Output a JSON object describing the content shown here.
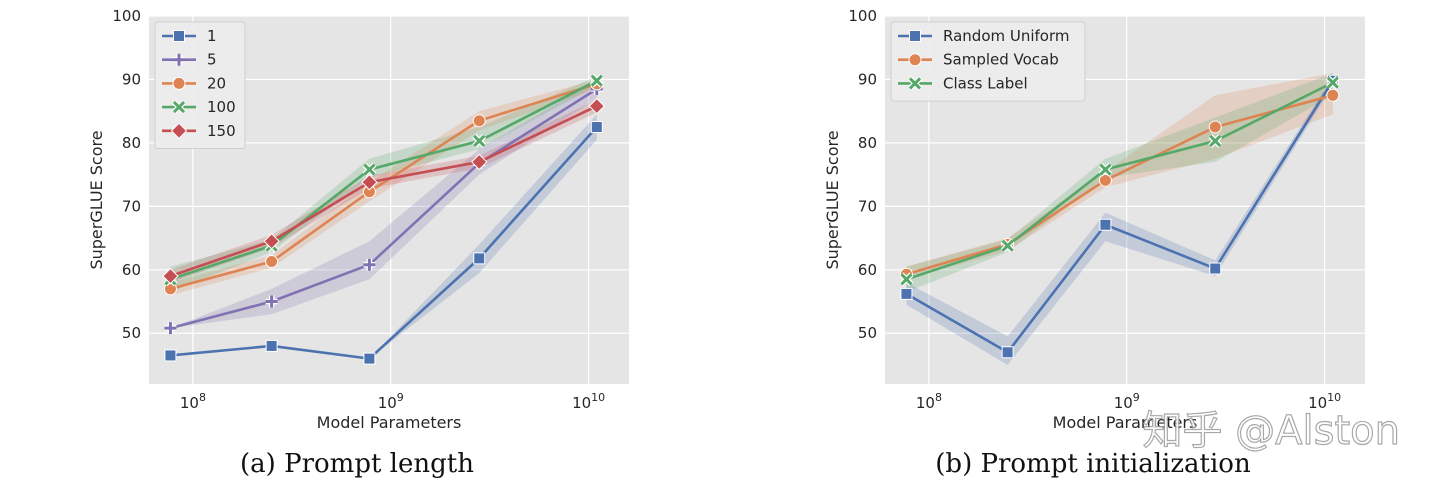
{
  "colors": {
    "blue": "#4c72b0",
    "purple": "#8172b3",
    "orange": "#dd8452",
    "green": "#55a868",
    "red": "#c44e52",
    "plot_bg": "#e5e5e5",
    "grid": "#ffffff"
  },
  "chart_data": [
    {
      "id": "a",
      "type": "line",
      "caption": "(a) Prompt length",
      "xlabel": "Model Parameters",
      "ylabel": "SuperGLUE Score",
      "xscale": "log",
      "xlim": [
        60000000,
        16000000000
      ],
      "ylim": [
        42,
        100
      ],
      "yticks": [
        50,
        60,
        70,
        80,
        90,
        100
      ],
      "xticks": [
        {
          "value": 100000000,
          "base": "10",
          "exp": "8"
        },
        {
          "value": 1000000000,
          "base": "10",
          "exp": "9"
        },
        {
          "value": 10000000000,
          "base": "10",
          "exp": "10"
        }
      ],
      "x": [
        77000000,
        250000000,
        780000000,
        2800000000,
        11000000000
      ],
      "legend": "top-left",
      "series": [
        {
          "name": "1",
          "color": "#4c72b0",
          "marker": "square",
          "values": [
            46.5,
            48.0,
            46.0,
            61.8,
            82.5
          ],
          "band": [
            [
              46.5,
              46.5
            ],
            [
              48.0,
              48.0
            ],
            [
              46.0,
              46.0
            ],
            [
              59.5,
              64.0
            ],
            [
              80.5,
              84.5
            ]
          ]
        },
        {
          "name": "5",
          "color": "#8172b3",
          "marker": "plus",
          "values": [
            50.8,
            55.0,
            60.8,
            76.8,
            88.5
          ],
          "band": [
            [
              50.8,
              50.8
            ],
            [
              53.0,
              57.0
            ],
            [
              58.5,
              64.5
            ],
            [
              75.0,
              79.0
            ],
            [
              87.0,
              90.0
            ]
          ]
        },
        {
          "name": "20",
          "color": "#dd8452",
          "marker": "circle",
          "values": [
            57.0,
            61.3,
            72.3,
            83.5,
            89.3
          ],
          "band": [
            [
              56.0,
              58.0
            ],
            [
              60.3,
              62.3
            ],
            [
              70.8,
              73.8
            ],
            [
              82.0,
              85.0
            ],
            [
              88.5,
              90.0
            ]
          ]
        },
        {
          "name": "100",
          "color": "#55a868",
          "marker": "x",
          "values": [
            58.5,
            63.8,
            75.8,
            80.3,
            89.8
          ],
          "band": [
            [
              56.5,
              60.5
            ],
            [
              62.8,
              64.8
            ],
            [
              74.5,
              77.5
            ],
            [
              79.0,
              82.5
            ],
            [
              89.0,
              90.5
            ]
          ]
        },
        {
          "name": "150",
          "color": "#c44e52",
          "marker": "diamond",
          "values": [
            59.0,
            64.5,
            73.8,
            77.0,
            85.8
          ],
          "band": [
            [
              58.0,
              60.0
            ],
            [
              63.5,
              65.5
            ],
            [
              72.8,
              74.8
            ],
            [
              76.0,
              78.0
            ],
            [
              84.8,
              86.8
            ]
          ]
        }
      ]
    },
    {
      "id": "b",
      "type": "line",
      "caption": "(b) Prompt initialization",
      "xlabel": "Model Parameters",
      "ylabel": "SuperGLUE Score",
      "xscale": "log",
      "xlim": [
        60000000,
        16000000000
      ],
      "ylim": [
        42,
        100
      ],
      "yticks": [
        50,
        60,
        70,
        80,
        90,
        100
      ],
      "xticks": [
        {
          "value": 100000000,
          "base": "10",
          "exp": "8"
        },
        {
          "value": 1000000000,
          "base": "10",
          "exp": "9"
        },
        {
          "value": 10000000000,
          "base": "10",
          "exp": "10"
        }
      ],
      "x": [
        77000000,
        250000000,
        780000000,
        2800000000,
        11000000000
      ],
      "legend": "top-left",
      "series": [
        {
          "name": "Random Uniform",
          "color": "#4c72b0",
          "marker": "square",
          "values": [
            56.2,
            47.0,
            67.1,
            60.2,
            89.8
          ],
          "band": [
            [
              54.5,
              58.0
            ],
            [
              45.0,
              49.5
            ],
            [
              64.5,
              69.0
            ],
            [
              59.0,
              61.5
            ],
            [
              89.0,
              90.5
            ]
          ]
        },
        {
          "name": "Sampled Vocab",
          "color": "#dd8452",
          "marker": "circle",
          "values": [
            59.3,
            64.0,
            74.1,
            82.5,
            87.5
          ],
          "band": [
            [
              58.5,
              60.5
            ],
            [
              63.0,
              65.0
            ],
            [
              73.0,
              75.5
            ],
            [
              77.5,
              87.5
            ],
            [
              84.5,
              91.0
            ]
          ]
        },
        {
          "name": "Class Label",
          "color": "#55a868",
          "marker": "x",
          "values": [
            58.5,
            63.8,
            75.8,
            80.3,
            89.5
          ],
          "band": [
            [
              56.5,
              60.5
            ],
            [
              62.8,
              64.8
            ],
            [
              74.5,
              77.5
            ],
            [
              77.0,
              84.0
            ],
            [
              87.5,
              91.0
            ]
          ]
        }
      ]
    }
  ],
  "watermark": "知乎 @Alston"
}
